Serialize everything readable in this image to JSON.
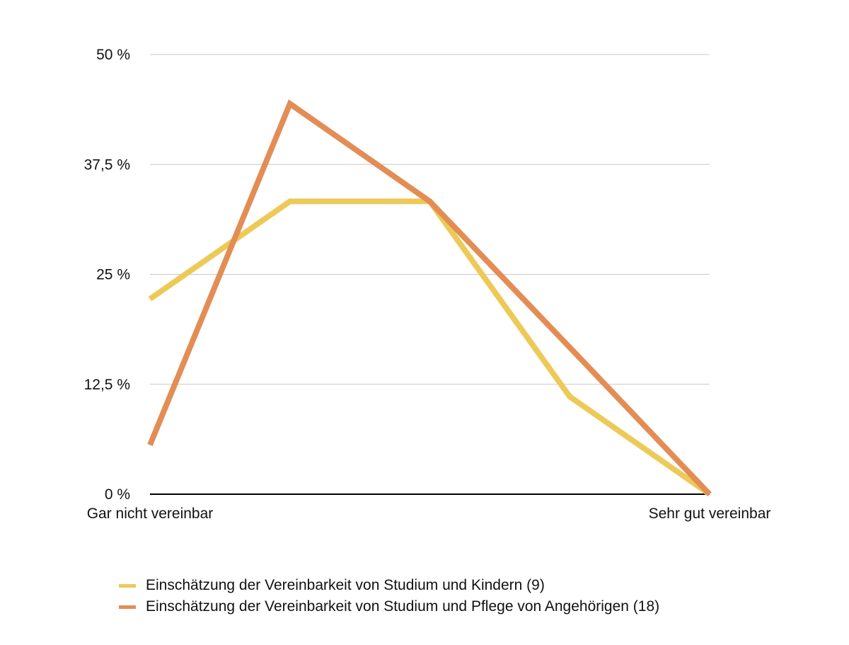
{
  "chart_data": {
    "type": "line",
    "categories": [
      "Gar nicht vereinbar",
      "",
      "",
      "",
      "Sehr gut vereinbar"
    ],
    "ylim": [
      0,
      50
    ],
    "yticks": [
      0,
      12.5,
      25,
      37.5,
      50
    ],
    "ytick_labels": [
      "0 %",
      "12,5 %",
      "25 %",
      "37,5 %",
      "50 %"
    ],
    "grid": true,
    "legend_position": "bottom",
    "series": [
      {
        "name": "Einschätzung der Vereinbarkeit von Studium und Kindern (9)",
        "color": "#EDC957",
        "values": [
          22.2,
          33.3,
          33.3,
          11.1,
          0
        ]
      },
      {
        "name": "Einschätzung der Vereinbarkeit von Studium und Pflege von Angehörigen (18)",
        "color": "#E38D55",
        "values": [
          5.6,
          44.4,
          33.3,
          16.7,
          0
        ]
      }
    ]
  }
}
